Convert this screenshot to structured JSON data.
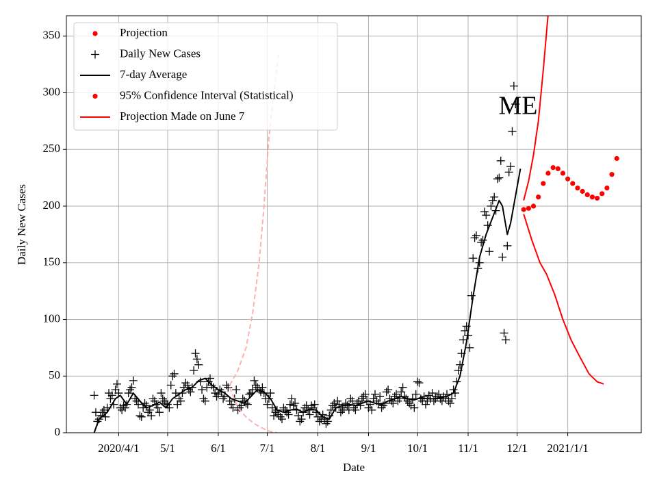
{
  "chart_data": {
    "type": "line",
    "xlabel": "Date",
    "ylabel": "Daily New Cases",
    "xlim": [
      "2020-02-29",
      "2021-02-15"
    ],
    "ylim": [
      0,
      368
    ],
    "yticks": [
      0,
      50,
      100,
      150,
      200,
      250,
      300,
      350
    ],
    "xticks": [
      {
        "value": "2020-04-01",
        "label": "2020/4/1"
      },
      {
        "value": "2020-05-01",
        "label": "5/1"
      },
      {
        "value": "2020-06-01",
        "label": "6/1"
      },
      {
        "value": "2020-07-01",
        "label": "7/1"
      },
      {
        "value": "2020-08-01",
        "label": "8/1"
      },
      {
        "value": "2020-09-01",
        "label": "9/1"
      },
      {
        "value": "2020-10-01",
        "label": "10/1"
      },
      {
        "value": "2020-11-01",
        "label": "11/1"
      },
      {
        "value": "2020-12-01",
        "label": "12/1"
      },
      {
        "value": "2021-01-01",
        "label": "2021/1/1"
      }
    ],
    "grid": true,
    "legend_position": "upper left",
    "legend": [
      {
        "label": "Projection",
        "color": "#ff0000",
        "marker": "dot"
      },
      {
        "label": "Daily New Cases",
        "color": "#000000",
        "marker": "plus"
      },
      {
        "label": "7-day Average",
        "color": "#000000",
        "marker": "line"
      },
      {
        "label": "95% Confidence Interval (Statistical)",
        "color": "#ff0000",
        "marker": "dot"
      },
      {
        "label": "Projection Made on June 7",
        "color": "#ff0000",
        "marker": "line"
      }
    ],
    "annotations": [
      {
        "text": "ME"
      }
    ],
    "series": [
      {
        "color": "#ff0000",
        "style": "dot",
        "x": [
          "2020-12-05",
          "2020-12-08",
          "2020-12-11",
          "2020-12-14",
          "2020-12-17",
          "2020-12-20",
          "2020-12-23",
          "2020-12-26",
          "2020-12-29",
          "2021-01-01",
          "2021-01-04",
          "2021-01-07",
          "2021-01-10",
          "2021-01-13",
          "2021-01-16",
          "2021-01-19",
          "2021-01-22",
          "2021-01-25",
          "2021-01-28",
          "2021-01-31"
        ],
        "values": [
          197,
          198,
          200,
          208,
          220,
          229,
          234,
          233,
          229,
          224,
          220,
          216,
          213,
          210,
          208,
          207,
          211,
          216,
          228,
          242
        ]
      },
      {
        "color": "#000000",
        "style": "plus",
        "x": [
          "2020-03-17",
          "2020-03-18",
          "2020-03-19",
          "2020-03-20",
          "2020-03-21",
          "2020-03-22",
          "2020-03-23",
          "2020-03-24",
          "2020-03-25",
          "2020-03-26",
          "2020-03-27",
          "2020-03-28",
          "2020-03-29",
          "2020-03-30",
          "2020-03-31",
          "2020-04-01",
          "2020-04-02",
          "2020-04-03",
          "2020-04-04",
          "2020-04-05",
          "2020-04-06",
          "2020-04-07",
          "2020-04-08",
          "2020-04-09",
          "2020-04-10",
          "2020-04-11",
          "2020-04-12",
          "2020-04-13",
          "2020-04-14",
          "2020-04-15",
          "2020-04-16",
          "2020-04-17",
          "2020-04-18",
          "2020-04-19",
          "2020-04-20",
          "2020-04-21",
          "2020-04-22",
          "2020-04-23",
          "2020-04-24",
          "2020-04-25",
          "2020-04-26",
          "2020-04-27",
          "2020-04-28",
          "2020-04-29",
          "2020-04-30",
          "2020-05-01",
          "2020-05-02",
          "2020-05-03",
          "2020-05-04",
          "2020-05-05",
          "2020-05-06",
          "2020-05-07",
          "2020-05-08",
          "2020-05-09",
          "2020-05-10",
          "2020-05-11",
          "2020-05-12",
          "2020-05-13",
          "2020-05-14",
          "2020-05-15",
          "2020-05-16",
          "2020-05-17",
          "2020-05-18",
          "2020-05-19",
          "2020-05-20",
          "2020-05-21",
          "2020-05-22",
          "2020-05-23",
          "2020-05-24",
          "2020-05-25",
          "2020-05-26",
          "2020-05-27",
          "2020-05-28",
          "2020-05-29",
          "2020-05-30",
          "2020-05-31",
          "2020-06-01",
          "2020-06-02",
          "2020-06-03",
          "2020-06-04",
          "2020-06-05",
          "2020-06-06",
          "2020-06-07",
          "2020-06-08",
          "2020-06-09",
          "2020-06-10",
          "2020-06-11",
          "2020-06-12",
          "2020-06-13",
          "2020-06-14",
          "2020-06-15",
          "2020-06-16",
          "2020-06-17",
          "2020-06-18",
          "2020-06-19",
          "2020-06-20",
          "2020-06-21",
          "2020-06-22",
          "2020-06-23",
          "2020-06-24",
          "2020-06-25",
          "2020-06-26",
          "2020-06-27",
          "2020-06-28",
          "2020-06-29",
          "2020-06-30",
          "2020-07-01",
          "2020-07-02",
          "2020-07-03",
          "2020-07-04",
          "2020-07-05",
          "2020-07-06",
          "2020-07-07",
          "2020-07-08",
          "2020-07-09",
          "2020-07-10",
          "2020-07-11",
          "2020-07-12",
          "2020-07-13",
          "2020-07-14",
          "2020-07-15",
          "2020-07-16",
          "2020-07-17",
          "2020-07-18",
          "2020-07-19",
          "2020-07-20",
          "2020-07-21",
          "2020-07-22",
          "2020-07-23",
          "2020-07-24",
          "2020-07-25",
          "2020-07-26",
          "2020-07-27",
          "2020-07-28",
          "2020-07-29",
          "2020-07-30",
          "2020-07-31",
          "2020-08-01",
          "2020-08-02",
          "2020-08-03",
          "2020-08-04",
          "2020-08-05",
          "2020-08-06",
          "2020-08-07",
          "2020-08-08",
          "2020-08-09",
          "2020-08-10",
          "2020-08-11",
          "2020-08-12",
          "2020-08-13",
          "2020-08-14",
          "2020-08-15",
          "2020-08-16",
          "2020-08-17",
          "2020-08-18",
          "2020-08-19",
          "2020-08-20",
          "2020-08-21",
          "2020-08-22",
          "2020-08-23",
          "2020-08-24",
          "2020-08-25",
          "2020-08-26",
          "2020-08-27",
          "2020-08-28",
          "2020-08-29",
          "2020-08-30",
          "2020-08-31",
          "2020-09-01",
          "2020-09-02",
          "2020-09-03",
          "2020-09-04",
          "2020-09-05",
          "2020-09-06",
          "2020-09-07",
          "2020-09-08",
          "2020-09-09",
          "2020-09-10",
          "2020-09-11",
          "2020-09-12",
          "2020-09-13",
          "2020-09-14",
          "2020-09-15",
          "2020-09-16",
          "2020-09-17",
          "2020-09-18",
          "2020-09-19",
          "2020-09-20",
          "2020-09-21",
          "2020-09-22",
          "2020-09-23",
          "2020-09-24",
          "2020-09-25",
          "2020-09-26",
          "2020-09-27",
          "2020-09-28",
          "2020-09-29",
          "2020-09-30",
          "2020-10-01",
          "2020-10-02",
          "2020-10-03",
          "2020-10-04",
          "2020-10-05",
          "2020-10-06",
          "2020-10-07",
          "2020-10-08",
          "2020-10-09",
          "2020-10-10",
          "2020-10-11",
          "2020-10-12",
          "2020-10-13",
          "2020-10-14",
          "2020-10-15",
          "2020-10-16",
          "2020-10-17",
          "2020-10-18",
          "2020-10-19",
          "2020-10-20",
          "2020-10-21",
          "2020-10-22",
          "2020-10-23",
          "2020-10-24",
          "2020-10-25",
          "2020-10-26",
          "2020-10-27",
          "2020-10-28",
          "2020-10-29",
          "2020-10-30",
          "2020-10-31",
          "2020-11-01",
          "2020-11-02",
          "2020-11-03",
          "2020-11-04",
          "2020-11-05",
          "2020-11-06",
          "2020-11-07",
          "2020-11-08",
          "2020-11-09",
          "2020-11-10",
          "2020-11-11",
          "2020-11-12",
          "2020-11-13",
          "2020-11-14",
          "2020-11-15",
          "2020-11-16",
          "2020-11-17",
          "2020-11-18",
          "2020-11-19",
          "2020-11-20",
          "2020-11-21",
          "2020-11-22",
          "2020-11-23",
          "2020-11-24",
          "2020-11-25",
          "2020-11-26",
          "2020-11-27",
          "2020-11-28",
          "2020-11-29",
          "2020-11-30"
        ],
        "values": [
          33,
          18,
          10,
          12,
          15,
          18,
          20,
          14,
          22,
          35,
          30,
          33,
          25,
          38,
          43,
          35,
          22,
          20,
          24,
          22,
          25,
          35,
          38,
          40,
          46,
          30,
          28,
          25,
          15,
          14,
          22,
          26,
          24,
          18,
          20,
          15,
          30,
          28,
          25,
          22,
          18,
          35,
          30,
          28,
          26,
          25,
          22,
          42,
          50,
          52,
          35,
          25,
          30,
          28,
          35,
          40,
          44,
          42,
          38,
          36,
          40,
          55,
          70,
          65,
          60,
          45,
          38,
          30,
          28,
          40,
          45,
          48,
          42,
          40,
          35,
          32,
          34,
          38,
          36,
          30,
          32,
          42,
          40,
          28,
          25,
          22,
          30,
          38,
          20,
          22,
          24,
          30,
          28,
          26,
          25,
          34,
          35,
          38,
          46,
          42,
          40,
          38,
          36,
          40,
          35,
          30,
          25,
          30,
          35,
          22,
          15,
          18,
          20,
          16,
          14,
          12,
          22,
          20,
          18,
          16,
          25,
          30,
          24,
          26,
          20,
          15,
          10,
          12,
          18,
          22,
          24,
          20,
          16,
          24,
          22,
          25,
          18,
          14,
          10,
          12,
          16,
          12,
          8,
          10,
          15,
          20,
          24,
          26,
          22,
          28,
          25,
          18,
          20,
          22,
          26,
          24,
          20,
          30,
          28,
          22,
          20,
          26,
          28,
          24,
          30,
          32,
          34,
          28,
          22,
          25,
          20,
          30,
          34,
          28,
          26,
          32,
          22,
          24,
          26,
          36,
          38,
          30,
          28,
          26,
          32,
          34,
          28,
          30,
          36,
          40,
          32,
          30,
          28,
          26,
          24,
          30,
          22,
          34,
          45,
          44,
          30,
          28,
          32,
          25,
          28,
          33,
          30,
          35,
          28,
          30,
          32,
          34,
          30,
          28,
          32,
          30,
          34,
          28,
          26,
          30,
          38,
          35,
          45,
          55,
          60,
          70,
          82,
          90,
          94,
          86,
          75,
          121,
          154,
          172,
          174,
          145,
          150,
          168,
          170,
          195,
          192,
          183,
          160,
          200,
          205,
          208,
          196,
          224,
          225,
          240,
          155,
          88,
          82,
          165,
          230,
          235,
          266,
          306,
          290
        ]
      },
      {
        "color": "#000000",
        "style": "line",
        "x": [
          "2020-03-17",
          "2020-03-20",
          "2020-03-25",
          "2020-03-30",
          "2020-04-02",
          "2020-04-06",
          "2020-04-10",
          "2020-04-14",
          "2020-04-18",
          "2020-04-22",
          "2020-04-26",
          "2020-04-30",
          "2020-05-04",
          "2020-05-08",
          "2020-05-12",
          "2020-05-16",
          "2020-05-20",
          "2020-05-24",
          "2020-05-28",
          "2020-06-01",
          "2020-06-05",
          "2020-06-09",
          "2020-06-13",
          "2020-06-17",
          "2020-06-21",
          "2020-06-25",
          "2020-06-29",
          "2020-07-03",
          "2020-07-07",
          "2020-07-11",
          "2020-07-15",
          "2020-07-19",
          "2020-07-23",
          "2020-07-27",
          "2020-07-31",
          "2020-08-04",
          "2020-08-08",
          "2020-08-12",
          "2020-08-16",
          "2020-08-20",
          "2020-08-24",
          "2020-08-28",
          "2020-09-01",
          "2020-09-05",
          "2020-09-09",
          "2020-09-13",
          "2020-09-17",
          "2020-09-21",
          "2020-09-25",
          "2020-09-29",
          "2020-10-03",
          "2020-10-07",
          "2020-10-11",
          "2020-10-15",
          "2020-10-19",
          "2020-10-23",
          "2020-10-27",
          "2020-10-31",
          "2020-11-04",
          "2020-11-08",
          "2020-11-12",
          "2020-11-16",
          "2020-11-20",
          "2020-11-22",
          "2020-11-25",
          "2020-11-27",
          "2020-12-03"
        ],
        "values": [
          0,
          12,
          18,
          30,
          33,
          25,
          35,
          28,
          22,
          24,
          27,
          22,
          30,
          34,
          38,
          40,
          46,
          48,
          42,
          38,
          35,
          30,
          28,
          26,
          32,
          38,
          36,
          30,
          20,
          18,
          20,
          21,
          18,
          21,
          20,
          14,
          12,
          22,
          24,
          25,
          24,
          26,
          28,
          26,
          25,
          28,
          30,
          32,
          30,
          29,
          31,
          30,
          30,
          31,
          32,
          35,
          50,
          80,
          120,
          155,
          175,
          190,
          205,
          200,
          175,
          185,
          233
        ]
      },
      {
        "color": "#ff0000",
        "style": "line",
        "x": [
          "2020-12-05",
          "2020-12-08",
          "2020-12-11",
          "2020-12-14",
          "2020-12-17",
          "2020-12-20"
        ],
        "values": [
          205,
          222,
          245,
          275,
          320,
          370
        ]
      },
      {
        "color": "#ff0000",
        "style": "line",
        "x": [
          "2020-12-05",
          "2020-12-10",
          "2020-12-15",
          "2020-12-19",
          "2020-12-24",
          "2020-12-29",
          "2021-01-03",
          "2021-01-08",
          "2021-01-14",
          "2021-01-19",
          "2021-01-23"
        ],
        "values": [
          193,
          170,
          150,
          140,
          122,
          100,
          82,
          68,
          52,
          45,
          43
        ]
      },
      {
        "color": "#ffb0b0",
        "style": "dashed",
        "x": [
          "2020-06-08",
          "2020-06-13",
          "2020-06-18",
          "2020-06-22",
          "2020-06-26",
          "2020-06-29",
          "2020-07-02",
          "2020-07-05",
          "2020-07-08"
        ],
        "values": [
          42,
          55,
          75,
          105,
          150,
          200,
          260,
          300,
          335
        ]
      },
      {
        "color": "#ffb0b0",
        "style": "dashed",
        "x": [
          "2020-06-08",
          "2020-06-13",
          "2020-06-18",
          "2020-06-23",
          "2020-06-28",
          "2020-07-03",
          "2020-07-07"
        ],
        "values": [
          40,
          22,
          14,
          8,
          4,
          1,
          0
        ]
      }
    ]
  }
}
